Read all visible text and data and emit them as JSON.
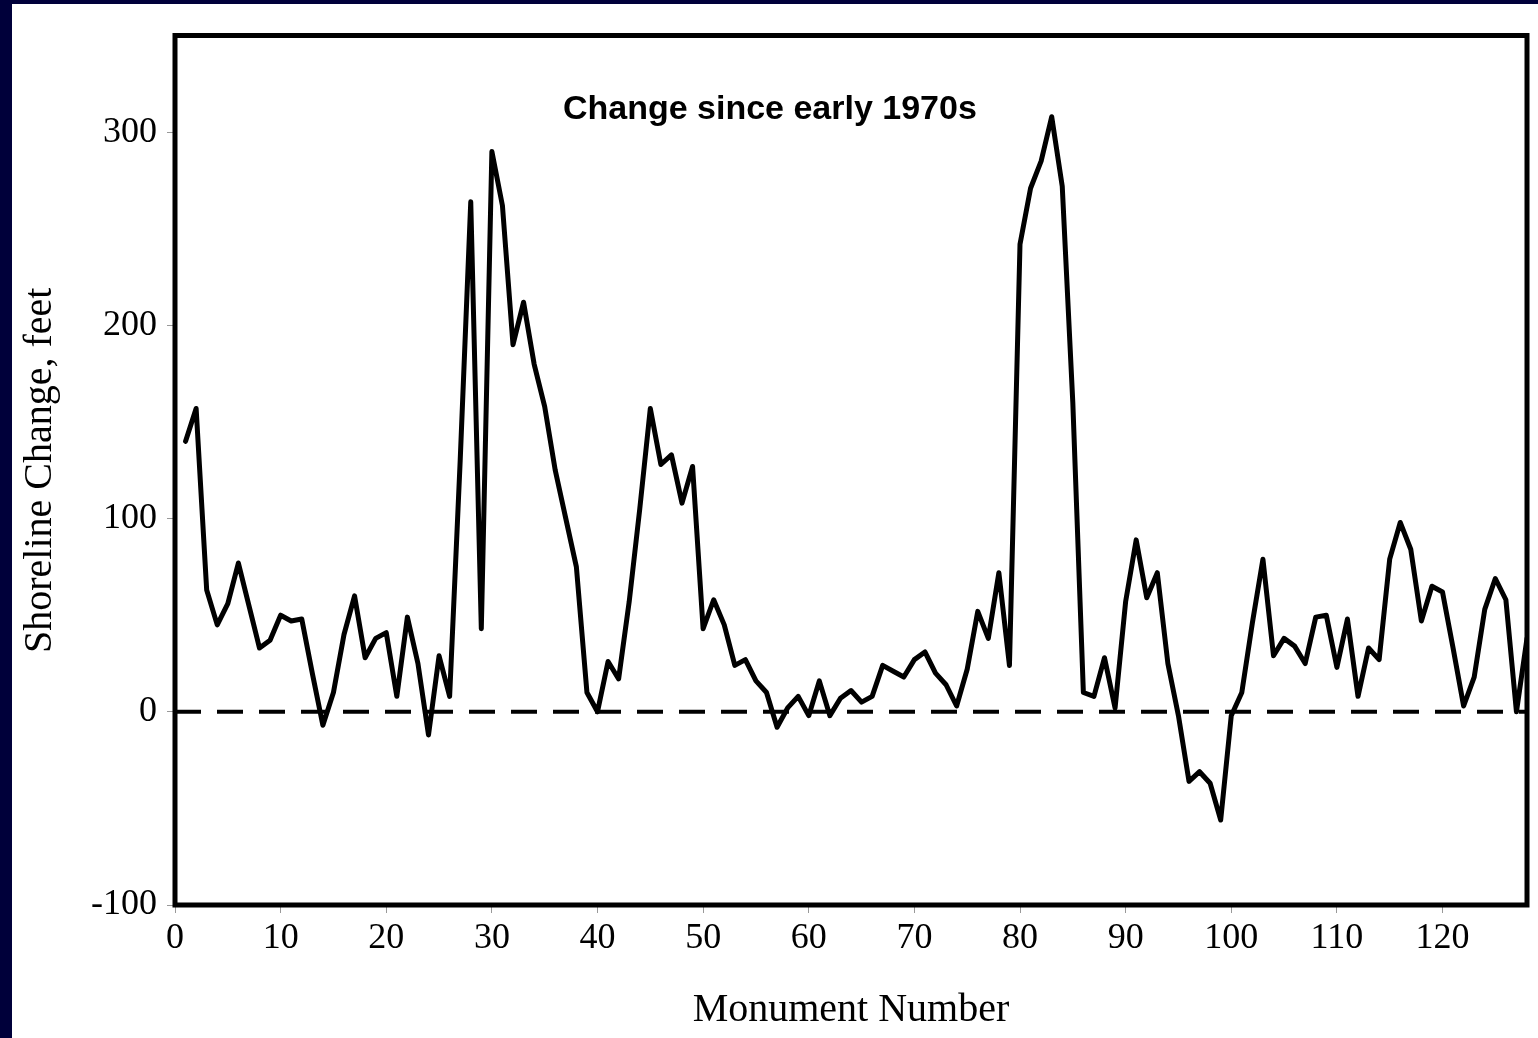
{
  "chart_data": {
    "type": "line",
    "title": "Change since early 1970s",
    "xlabel": "Monument Number",
    "ylabel": "Shoreline Change, feet",
    "x": [
      1,
      2,
      3,
      4,
      5,
      6,
      7,
      8,
      9,
      10,
      11,
      12,
      13,
      14,
      15,
      16,
      17,
      18,
      19,
      20,
      21,
      22,
      23,
      24,
      25,
      26,
      27,
      28,
      29,
      30,
      31,
      32,
      33,
      34,
      35,
      36,
      37,
      38,
      39,
      40,
      41,
      42,
      43,
      44,
      45,
      46,
      47,
      48,
      49,
      50,
      51,
      52,
      53,
      54,
      55,
      56,
      57,
      58,
      59,
      60,
      61,
      62,
      63,
      64,
      65,
      66,
      67,
      68,
      69,
      70,
      71,
      72,
      73,
      74,
      75,
      76,
      77,
      78,
      79,
      80,
      81,
      82,
      83,
      84,
      85,
      86,
      87,
      88,
      89,
      90,
      91,
      92,
      93,
      94,
      95,
      96,
      97,
      98,
      99,
      100,
      101,
      102,
      103,
      104,
      105,
      106,
      107,
      108,
      109,
      110,
      111,
      112,
      113,
      114,
      115,
      116,
      117,
      118,
      119,
      120,
      121,
      122,
      123,
      124,
      125,
      126,
      127,
      128
    ],
    "series": [
      {
        "color": "#000000",
        "values": [
          140,
          157,
          63,
          45,
          56,
          77,
          55,
          33,
          37,
          50,
          47,
          48,
          20,
          -7,
          10,
          40,
          60,
          28,
          38,
          41,
          8,
          49,
          25,
          -12,
          29,
          8,
          130,
          264,
          43,
          290,
          262,
          190,
          212,
          180,
          158,
          125,
          100,
          75,
          10,
          0,
          26,
          17,
          57,
          105,
          157,
          128,
          133,
          108,
          127,
          43,
          58,
          45,
          24,
          27,
          16,
          10,
          -8,
          2,
          8,
          -2,
          16,
          -2,
          7,
          11,
          5,
          8,
          24,
          21,
          18,
          27,
          31,
          20,
          14,
          3,
          22,
          52,
          38,
          72,
          24,
          242,
          271,
          285,
          308,
          272,
          160,
          10,
          8,
          28,
          2,
          57,
          89,
          59,
          72,
          25,
          -2,
          -36,
          -31,
          -37,
          -56,
          -2,
          10,
          46,
          79,
          29,
          38,
          34,
          25,
          49,
          50,
          23,
          48,
          8,
          33,
          27,
          79,
          98,
          84,
          47,
          65,
          62,
          33,
          3,
          18,
          53,
          69,
          58,
          0,
          38
        ]
      }
    ],
    "xlim": [
      0,
      128
    ],
    "xticks": [
      0,
      10,
      20,
      30,
      40,
      50,
      60,
      70,
      80,
      90,
      100,
      110,
      120
    ],
    "ylim": [
      -100,
      350
    ],
    "yticks": [
      -100,
      0,
      100,
      200,
      300
    ],
    "grid": false,
    "legend": false,
    "marker": "none",
    "line_style": "solid",
    "ref_lines": [
      {
        "axis": "y",
        "value": 0,
        "line_style": "dashed",
        "color": "#000000"
      }
    ]
  }
}
